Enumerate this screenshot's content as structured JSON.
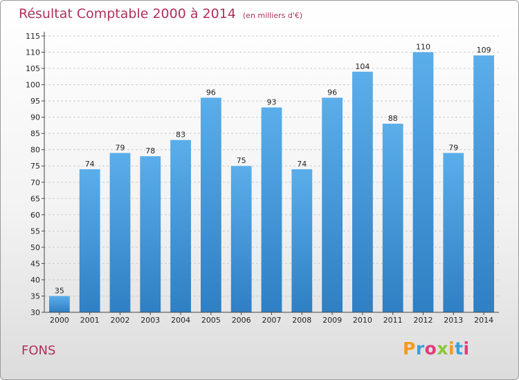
{
  "title": "Résultat Comptable 2000 à 2014",
  "subtitle": "(en milliers d'€)",
  "commune": "FONS",
  "logo": {
    "text": "Proxiti",
    "letters": [
      {
        "ch": "P",
        "color": "#f39a1e"
      },
      {
        "ch": "r",
        "color": "#3aa0dc"
      },
      {
        "ch": "o",
        "color": "#e23b7b"
      },
      {
        "ch": "x",
        "color": "#8cc63e"
      },
      {
        "ch": "i",
        "color": "#f39a1e"
      },
      {
        "ch": "t",
        "color": "#3aa0dc"
      },
      {
        "ch": "i",
        "color": "#e23b7b"
      }
    ]
  },
  "colors": {
    "bar_top": "#5aaeea",
    "bar_bottom": "#2f7fc4",
    "title": "#b0305a",
    "grid": "#cccccc",
    "axis": "#444444"
  },
  "chart_data": {
    "type": "bar",
    "title": "Résultat Comptable 2000 à 2014",
    "subtitle": "(en milliers d'€)",
    "xlabel": "",
    "ylabel": "",
    "categories": [
      "2000",
      "2001",
      "2002",
      "2003",
      "2004",
      "2005",
      "2006",
      "2007",
      "2008",
      "2009",
      "2010",
      "2011",
      "2012",
      "2013",
      "2014"
    ],
    "values": [
      35,
      74,
      79,
      78,
      83,
      96,
      75,
      93,
      74,
      96,
      104,
      88,
      110,
      79,
      109
    ],
    "ylim": [
      30,
      115
    ],
    "ytick_step": 5,
    "grid": "horizontal dashed",
    "legend": "none"
  }
}
